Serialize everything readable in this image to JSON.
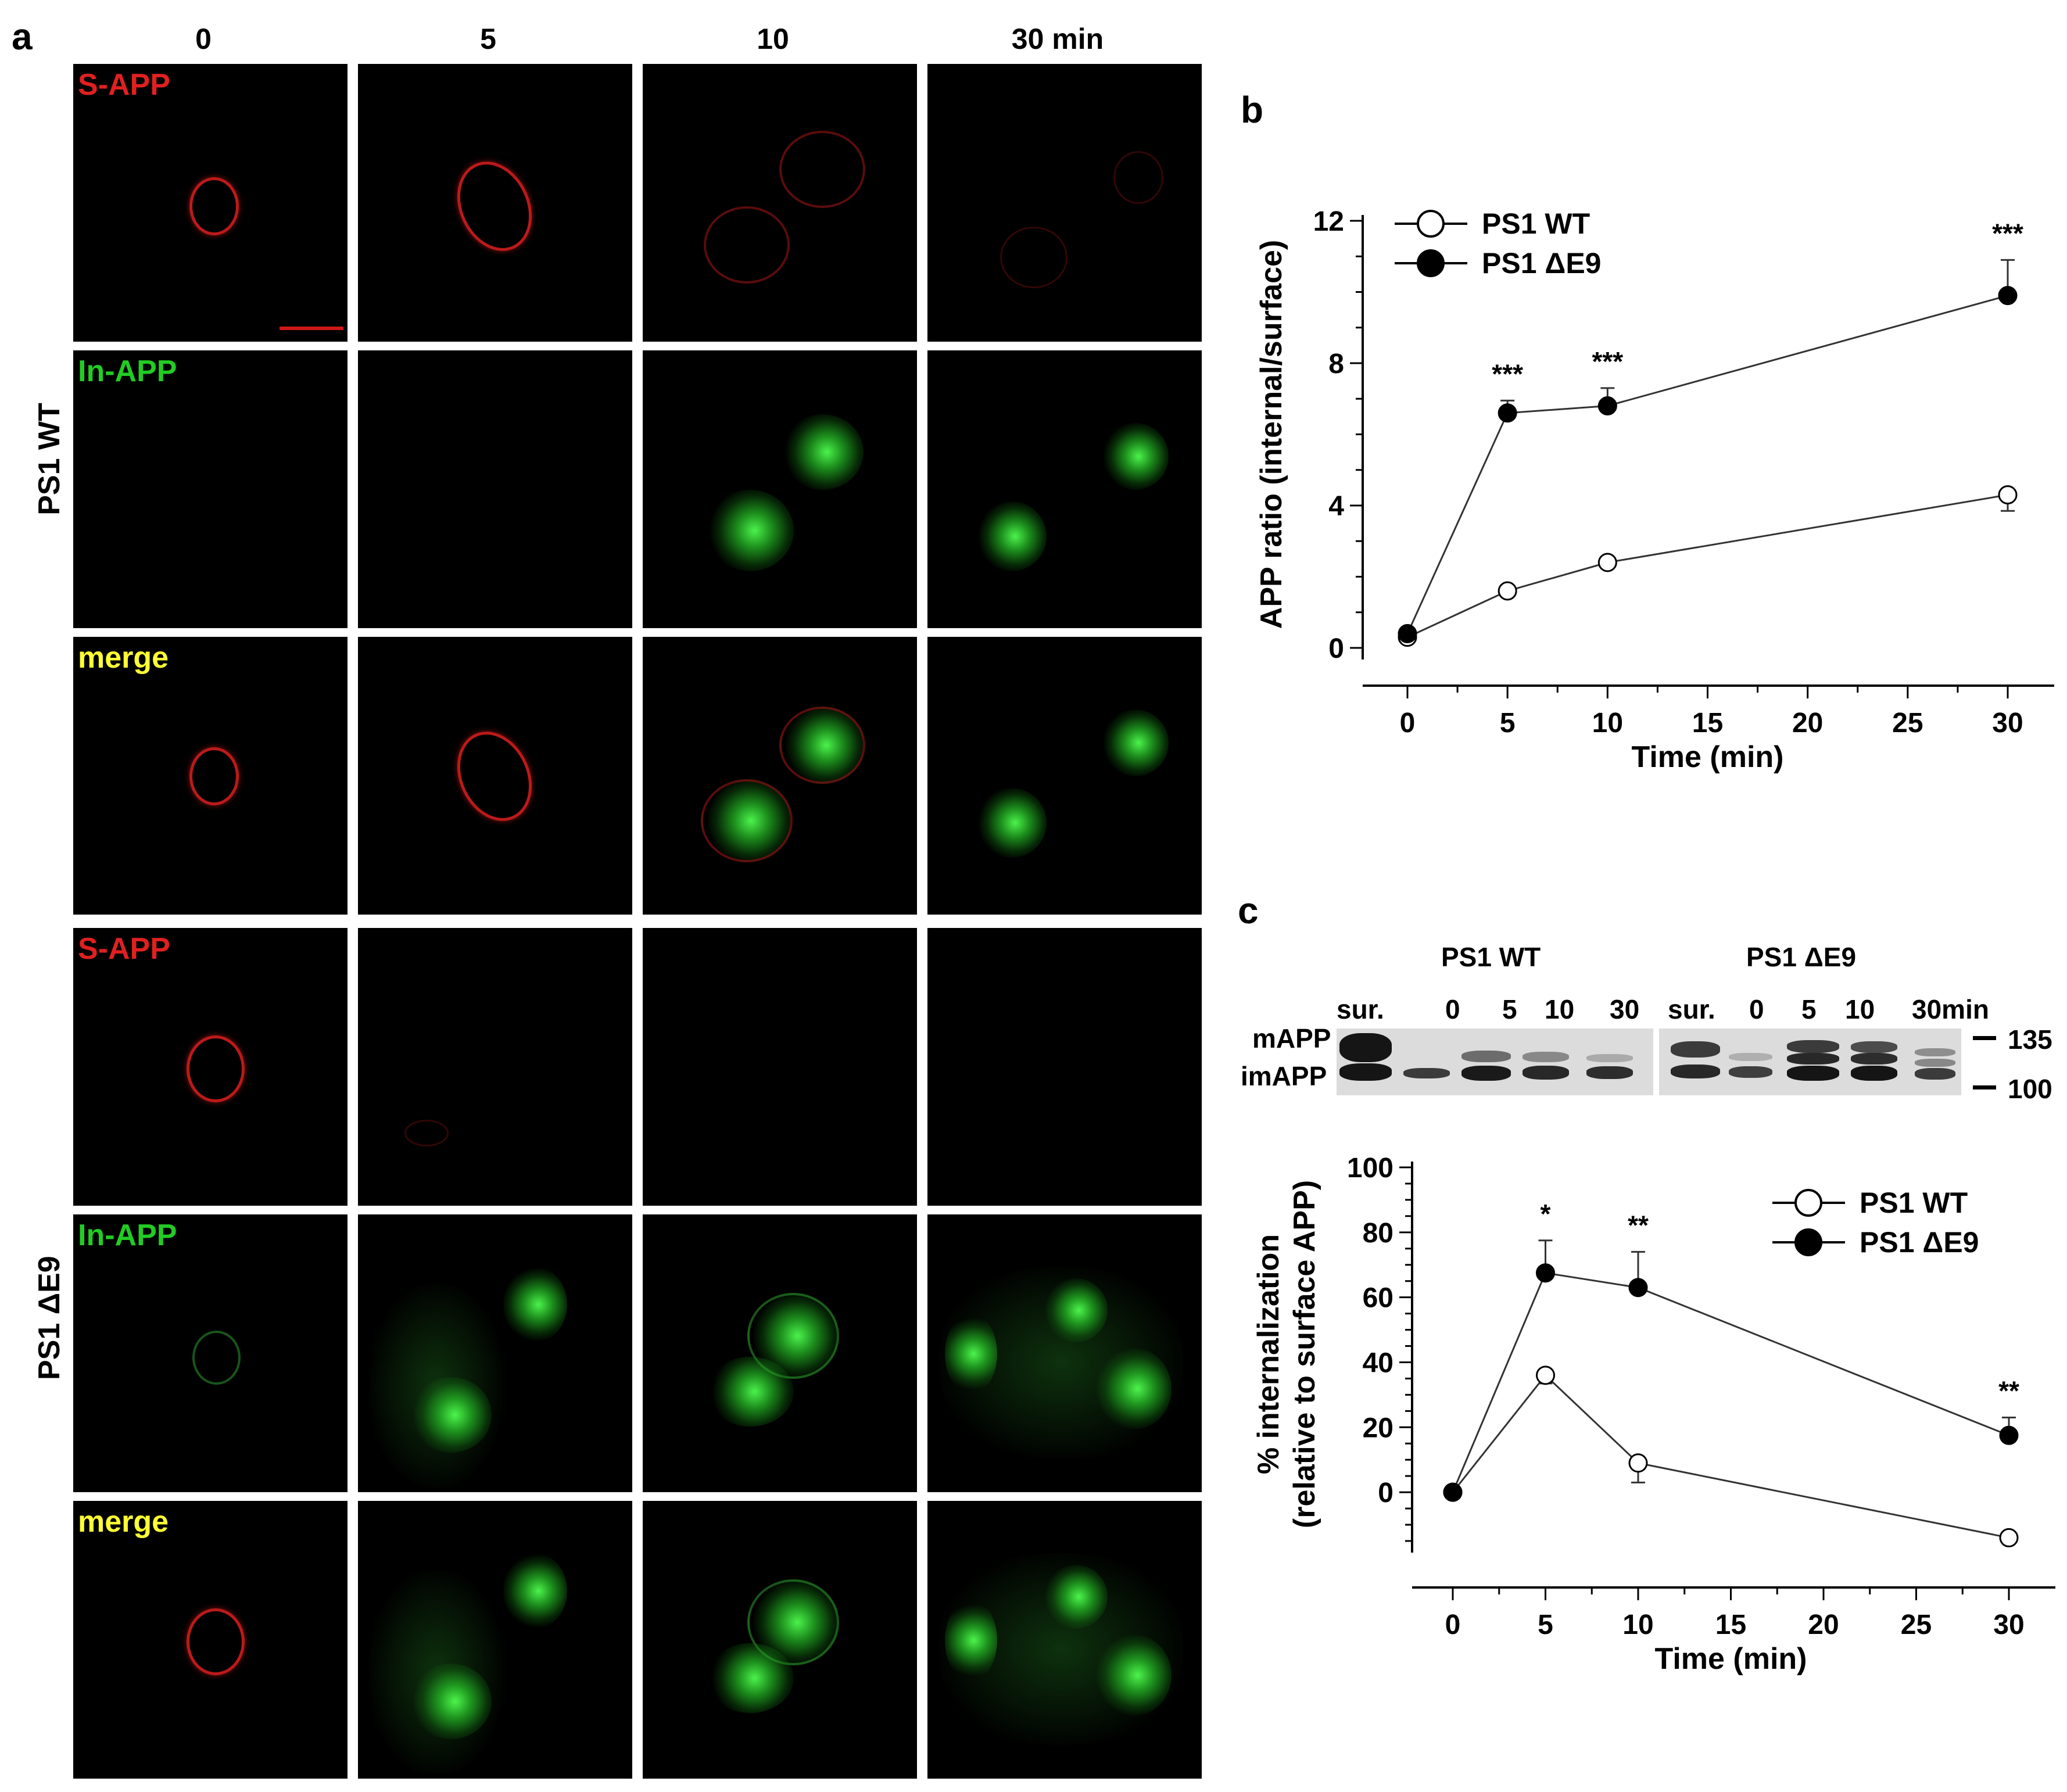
{
  "panel_a": {
    "label": "a",
    "columns": [
      "0",
      "5",
      "10",
      "30 min"
    ],
    "groups": [
      {
        "name": "PS1 WT",
        "rows": [
          "S-APP",
          "In-APP",
          "merge"
        ]
      },
      {
        "name": "PS1 ΔE9",
        "rows": [
          "S-APP",
          "In-APP",
          "merge"
        ]
      }
    ],
    "colors": {
      "red": "#e02020",
      "green": "#22cc22",
      "yellow": "#ffff33"
    }
  },
  "panel_b": {
    "label": "b",
    "chart_data": {
      "type": "line",
      "xlabel": "Time (min)",
      "ylabel": "APP ratio (internal/surface)",
      "xlim": [
        0,
        30
      ],
      "ylim": [
        0,
        12
      ],
      "xticks": [
        0,
        5,
        10,
        15,
        20,
        25,
        30
      ],
      "yticks": [
        0,
        4,
        8,
        12
      ],
      "legend_position": "top-left",
      "series": [
        {
          "name": "PS1 WT",
          "marker": "open-circle",
          "x": [
            0,
            5,
            10,
            30
          ],
          "y": [
            0.3,
            1.6,
            2.4,
            4.3
          ],
          "err": [
            0.1,
            0.15,
            0.1,
            0.45
          ],
          "sig": [
            "",
            "",
            "",
            ""
          ]
        },
        {
          "name": "PS1 ΔE9",
          "marker": "filled-circle",
          "x": [
            0,
            5,
            10,
            30
          ],
          "y": [
            0.4,
            6.6,
            6.8,
            9.9
          ],
          "err": [
            0.05,
            0.35,
            0.5,
            1.0
          ],
          "sig": [
            "",
            "***",
            "***",
            "***"
          ]
        }
      ]
    }
  },
  "panel_c": {
    "label": "c",
    "blot": {
      "group_labels": [
        "PS1 WT",
        "PS1 ΔE9"
      ],
      "lanes_wt": [
        "sur.",
        "0",
        "5",
        "10",
        "30"
      ],
      "lanes_de9": [
        "sur.",
        "0",
        "5",
        "10",
        "30min"
      ],
      "row_labels": [
        "mAPP",
        "imAPP"
      ],
      "markers": [
        "135",
        "100"
      ]
    },
    "chart_data": {
      "type": "line",
      "xlabel": "Time (min)",
      "ylabel_line1": "% internalization",
      "ylabel_line2": "(relative to surface APP)",
      "xlim": [
        0,
        30
      ],
      "ylim": [
        -15,
        100
      ],
      "xticks": [
        0,
        5,
        10,
        15,
        20,
        25,
        30
      ],
      "yticks": [
        0,
        20,
        40,
        60,
        80,
        100
      ],
      "legend_position": "top-right",
      "series": [
        {
          "name": "PS1 WT",
          "marker": "open-circle",
          "x": [
            0,
            5,
            10,
            30
          ],
          "y": [
            0,
            36,
            9,
            -14
          ],
          "err": [
            0,
            2.5,
            6,
            1
          ],
          "sig": [
            "",
            "",
            "",
            ""
          ]
        },
        {
          "name": "PS1 ΔE9",
          "marker": "filled-circle",
          "x": [
            0,
            5,
            10,
            30
          ],
          "y": [
            0,
            67.5,
            63,
            17.5
          ],
          "err": [
            0,
            10,
            11,
            5.5
          ],
          "sig": [
            "",
            "*",
            "**",
            "**"
          ]
        }
      ]
    }
  }
}
